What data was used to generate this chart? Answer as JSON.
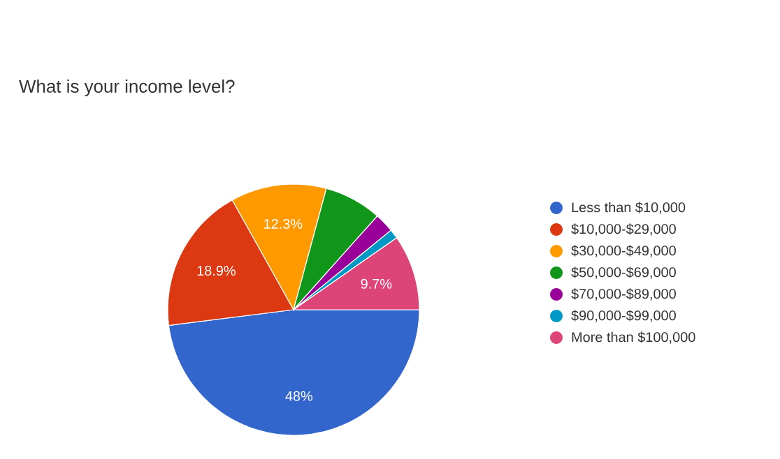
{
  "chart_data": {
    "type": "pie",
    "title": "What is your income level?",
    "categories": [
      "Less than $10,000",
      "$10,000-$29,000",
      "$30,000-$49,000",
      "$50,000-$69,000",
      "$70,000-$89,000",
      "$90,000-$99,000",
      "More than $100,000"
    ],
    "values": [
      48,
      18.9,
      12.3,
      7.4,
      2.5,
      1.2,
      9.7
    ],
    "value_labels": [
      "48%",
      "18.9%",
      "12.3%",
      null,
      null,
      null,
      "9.7%"
    ],
    "colors": [
      "#3366cc",
      "#dc3912",
      "#ff9900",
      "#109618",
      "#990099",
      "#0099c6",
      "#dd4477"
    ],
    "legend": "right"
  }
}
